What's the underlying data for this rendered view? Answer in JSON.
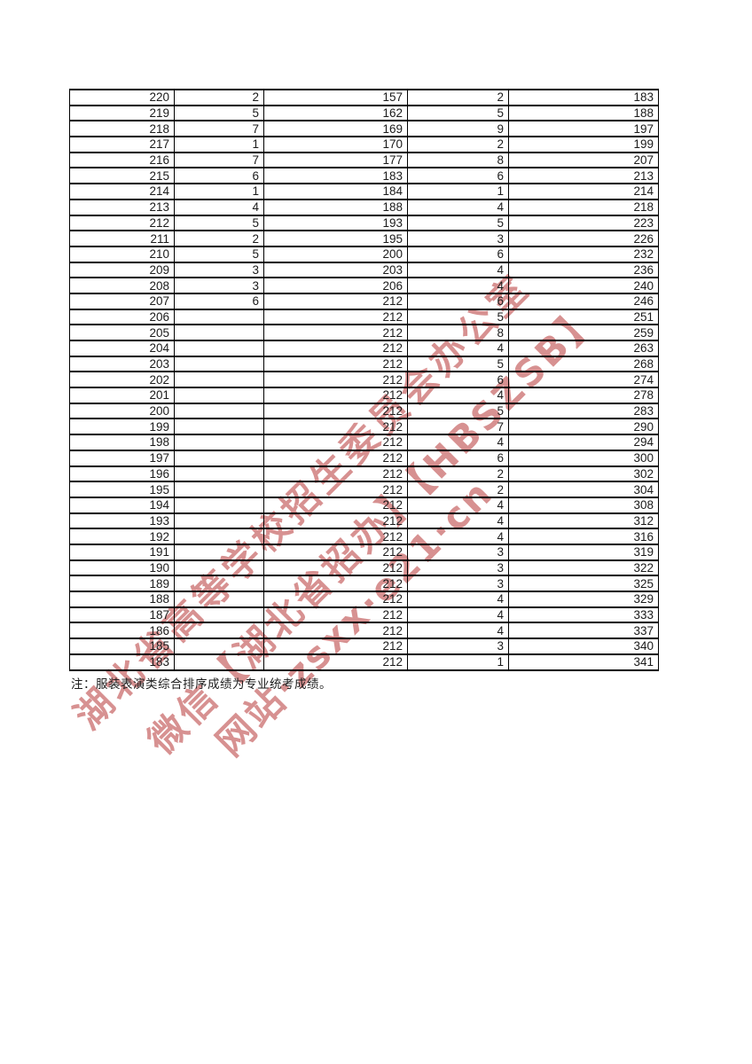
{
  "colors": {
    "background": "#ffffff",
    "table_border": "#000000",
    "text": "#1a1a1a",
    "watermark": "#cd7373"
  },
  "watermark": {
    "lines": [
      "湖北省高等学校招生委员会办公室",
      "微信【湖北省招办】【HBSZSB】",
      "网站·zsxx·e21·cn"
    ]
  },
  "table": {
    "rows": [
      [
        "220",
        "2",
        "157",
        "2",
        "183"
      ],
      [
        "219",
        "5",
        "162",
        "5",
        "188"
      ],
      [
        "218",
        "7",
        "169",
        "9",
        "197"
      ],
      [
        "217",
        "1",
        "170",
        "2",
        "199"
      ],
      [
        "216",
        "7",
        "177",
        "8",
        "207"
      ],
      [
        "215",
        "6",
        "183",
        "6",
        "213"
      ],
      [
        "214",
        "1",
        "184",
        "1",
        "214"
      ],
      [
        "213",
        "4",
        "188",
        "4",
        "218"
      ],
      [
        "212",
        "5",
        "193",
        "5",
        "223"
      ],
      [
        "211",
        "2",
        "195",
        "3",
        "226"
      ],
      [
        "210",
        "5",
        "200",
        "6",
        "232"
      ],
      [
        "209",
        "3",
        "203",
        "4",
        "236"
      ],
      [
        "208",
        "3",
        "206",
        "4",
        "240"
      ],
      [
        "207",
        "6",
        "212",
        "6",
        "246"
      ],
      [
        "206",
        "",
        "212",
        "5",
        "251"
      ],
      [
        "205",
        "",
        "212",
        "8",
        "259"
      ],
      [
        "204",
        "",
        "212",
        "4",
        "263"
      ],
      [
        "203",
        "",
        "212",
        "5",
        "268"
      ],
      [
        "202",
        "",
        "212",
        "6",
        "274"
      ],
      [
        "201",
        "",
        "212",
        "4",
        "278"
      ],
      [
        "200",
        "",
        "212",
        "5",
        "283"
      ],
      [
        "199",
        "",
        "212",
        "7",
        "290"
      ],
      [
        "198",
        "",
        "212",
        "4",
        "294"
      ],
      [
        "197",
        "",
        "212",
        "6",
        "300"
      ],
      [
        "196",
        "",
        "212",
        "2",
        "302"
      ],
      [
        "195",
        "",
        "212",
        "2",
        "304"
      ],
      [
        "194",
        "",
        "212",
        "4",
        "308"
      ],
      [
        "193",
        "",
        "212",
        "4",
        "312"
      ],
      [
        "192",
        "",
        "212",
        "4",
        "316"
      ],
      [
        "191",
        "",
        "212",
        "3",
        "319"
      ],
      [
        "190",
        "",
        "212",
        "3",
        "322"
      ],
      [
        "189",
        "",
        "212",
        "3",
        "325"
      ],
      [
        "188",
        "",
        "212",
        "4",
        "329"
      ],
      [
        "187",
        "",
        "212",
        "4",
        "333"
      ],
      [
        "186",
        "",
        "212",
        "4",
        "337"
      ],
      [
        "185",
        "",
        "212",
        "3",
        "340"
      ],
      [
        "183",
        "",
        "212",
        "1",
        "341"
      ]
    ]
  },
  "footnote": "注：服装表演类综合排序成绩为专业统考成绩。"
}
